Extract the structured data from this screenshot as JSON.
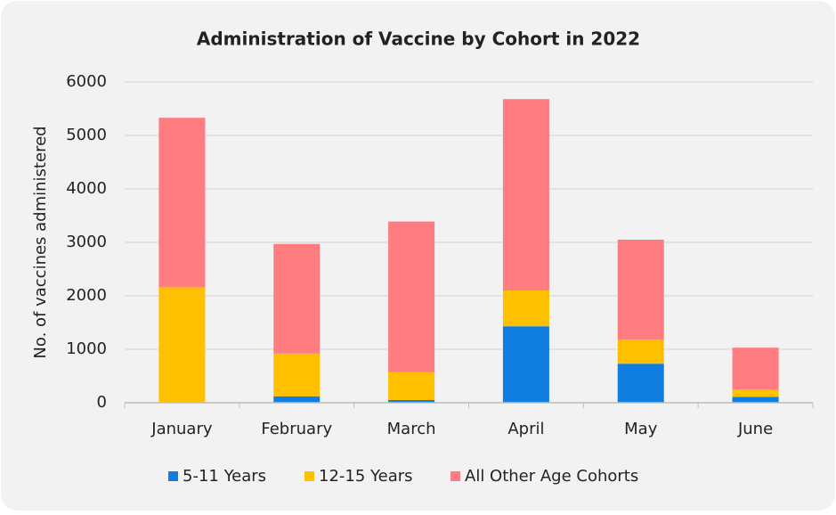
{
  "chart_data": {
    "type": "stacked_bar",
    "title": "Administration of Vaccine by Cohort in 2022",
    "y_label": "No. of vaccines administered",
    "categories": [
      "January",
      "February",
      "March",
      "April",
      "May",
      "June"
    ],
    "series": [
      {
        "name": "5-11 Years",
        "color": "#0f7ee0",
        "values": [
          10,
          120,
          50,
          1430,
          730,
          110
        ]
      },
      {
        "name": "12-15 Years",
        "color": "#ffc000",
        "values": [
          2150,
          800,
          520,
          670,
          450,
          140
        ]
      },
      {
        "name": "All Other Age Cohorts",
        "color": "#ff7c80",
        "values": [
          3170,
          2050,
          2820,
          3580,
          1870,
          780
        ]
      }
    ],
    "ylim": [
      0,
      6000
    ],
    "yticks": [
      0,
      1000,
      2000,
      3000,
      4000,
      5000,
      6000
    ],
    "grid": true
  }
}
